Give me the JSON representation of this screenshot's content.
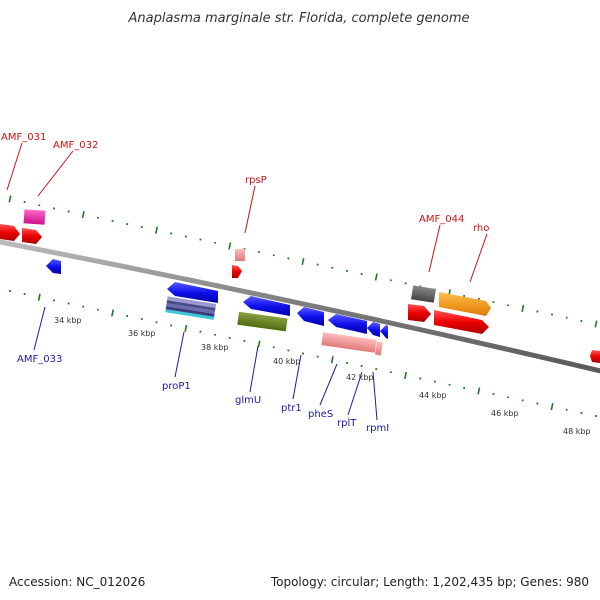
{
  "title": "Anaplasma marginale str. Florida, complete genome",
  "footer": {
    "accession": "Accession: NC_012026",
    "info": "Topology: circular; Length: 1,202,435 bp; Genes: 980"
  },
  "colors": {
    "backbone": "#8a8a8a",
    "tick": "#1f7a1f",
    "label_red": "#d01010",
    "label_blue": "#1a1aa8"
  },
  "scale": {
    "unit": "kbp",
    "labels": [
      "34 kbp",
      "36 kbp",
      "38 kbp",
      "40 kbp",
      "42 kbp",
      "44 kbp",
      "46 kbp",
      "48 kbp"
    ]
  },
  "gene_labels": {
    "top": [
      "AMF_031",
      "AMF_032",
      "rpsP",
      "AMF_044",
      "rho"
    ],
    "bottom": [
      "AMF_033",
      "proP1",
      "glmU",
      "ptr1",
      "pheS",
      "rplT",
      "rpmI"
    ]
  }
}
